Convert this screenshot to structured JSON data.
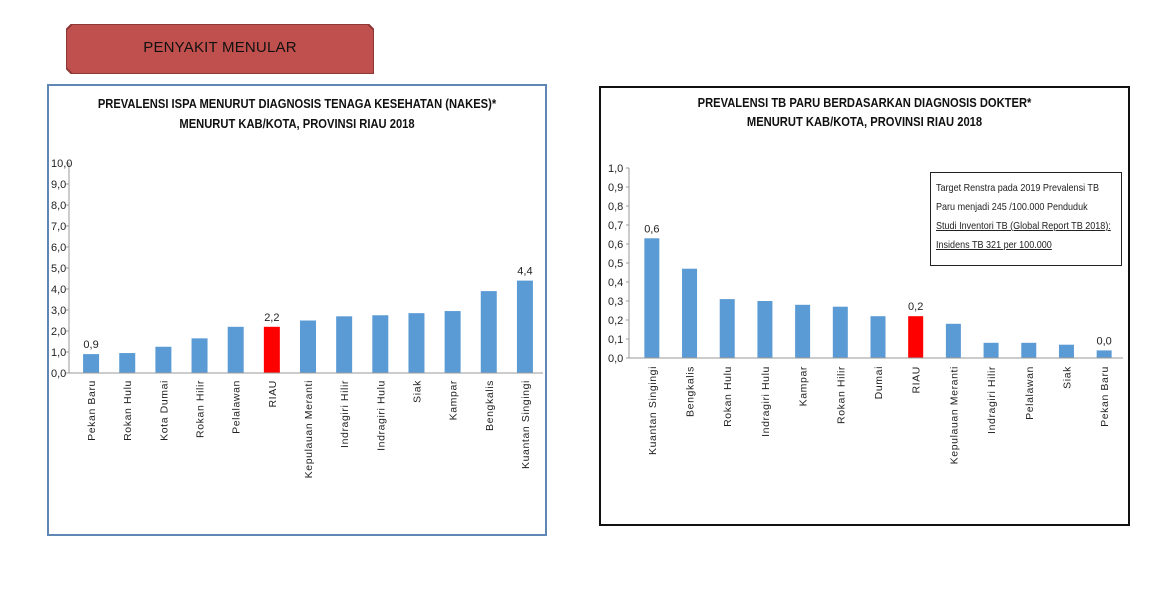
{
  "banner": {
    "label": "PENYAKIT MENULAR",
    "fill_color": "#c0504d",
    "border_color": "#8c3836"
  },
  "colors": {
    "bar": "#5b9bd5",
    "highlight": "#ff0000"
  },
  "note": {
    "lines": [
      "Target Renstra pada 2019 Prevalensi TB",
      "Paru menjadi 245 /100.000 Penduduk",
      "Studi Inventori TB (Global Report TB 2018):",
      "Insidens TB 321 per 100.000"
    ]
  },
  "chart_data": [
    {
      "type": "bar",
      "title_lines": [
        "PREVALENSI ISPA MENURUT DIAGNOSIS TENAGA KESEHATAN (NAKES)*",
        "MENURUT KAB/KOTA, PROVINSI RIAU 2018"
      ],
      "categories": [
        "Pekan Baru",
        "Rokan Hulu",
        "Kota Dumai",
        "Rokan Hilir",
        "Pelalawan",
        "RIAU",
        "Kepulauan Meranti",
        "Indragiri Hilir",
        "Indragiri Hulu",
        "Siak",
        "Kampar",
        "Bengkalis",
        "Kuantan Singingi"
      ],
      "values": [
        0.9,
        0.95,
        1.25,
        1.65,
        2.2,
        2.2,
        2.5,
        2.7,
        2.75,
        2.85,
        2.95,
        3.9,
        4.4
      ],
      "highlight_category": "RIAU",
      "value_labels": {
        "0": "0,9",
        "5": "2,2",
        "12": "4,4"
      },
      "ylim": [
        0,
        10
      ],
      "yticks": [
        "0,0",
        "1,0",
        "2,0",
        "3,0",
        "4,0",
        "5,0",
        "6,0",
        "7,0",
        "8,0",
        "9,0",
        "10,0"
      ],
      "grid": false,
      "legend": false
    },
    {
      "type": "bar",
      "title_lines": [
        "PREVALENSI TB PARU BERDASARKAN DIAGNOSIS DOKTER*",
        "MENURUT KAB/KOTA, PROVINSI RIAU 2018"
      ],
      "categories": [
        "Kuantan Singingi",
        "Bengkalis",
        "Rokan Hulu",
        "Indragiri Hulu",
        "Kampar",
        "Rokan Hilir",
        "Dumai",
        "RIAU",
        "Kepulauan Meranti",
        "Indragiri Hilir",
        "Pelalawan",
        "Siak",
        "Pekan Baru"
      ],
      "values": [
        0.63,
        0.47,
        0.31,
        0.3,
        0.28,
        0.27,
        0.22,
        0.22,
        0.18,
        0.08,
        0.08,
        0.07,
        0.04
      ],
      "highlight_category": "RIAU",
      "value_labels": {
        "0": "0,6",
        "7": "0,2",
        "12": "0,0"
      },
      "ylim": [
        0,
        1
      ],
      "yticks": [
        "0,0",
        "0,1",
        "0,2",
        "0,3",
        "0,4",
        "0,5",
        "0,6",
        "0,7",
        "0,8",
        "0,9",
        "1,0"
      ],
      "grid": false,
      "legend": false
    }
  ]
}
